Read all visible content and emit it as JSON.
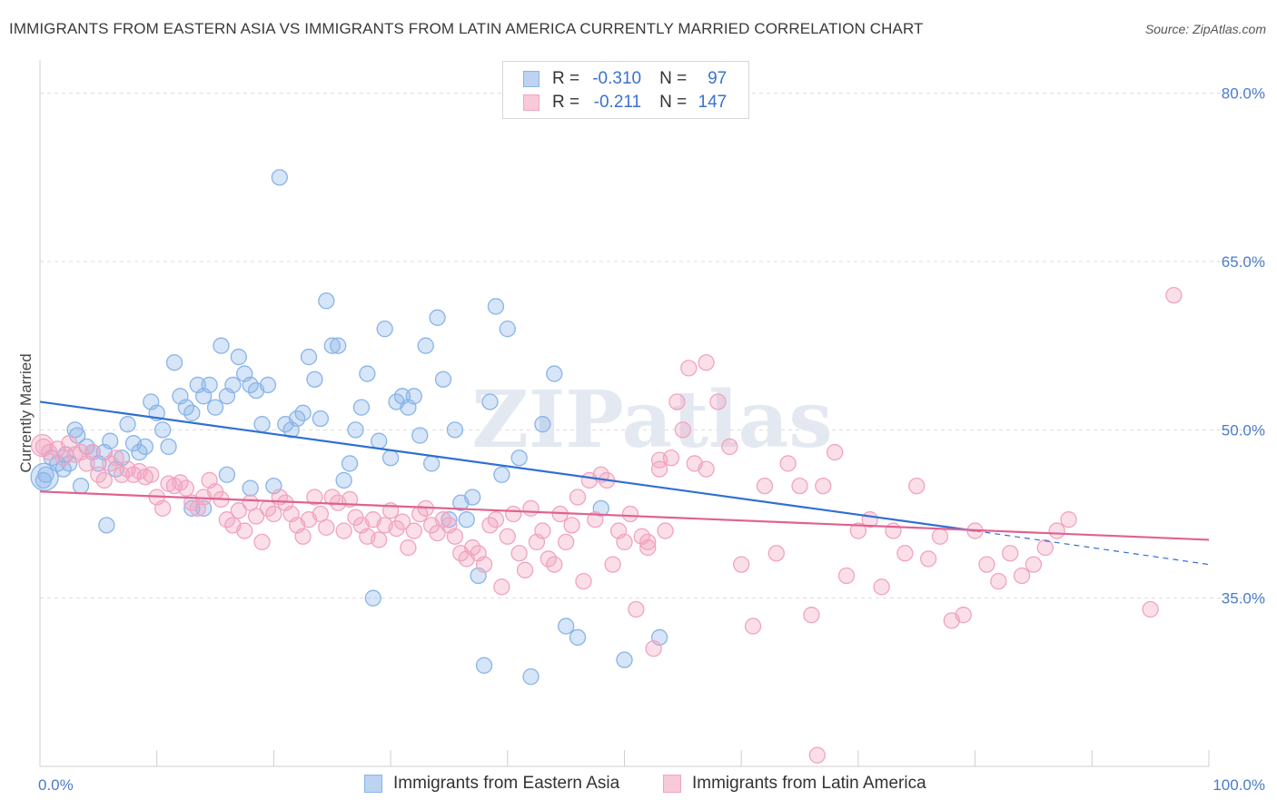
{
  "chart_data": {
    "type": "scatter",
    "title": "IMMIGRANTS FROM EASTERN ASIA VS IMMIGRANTS FROM LATIN AMERICA CURRENTLY MARRIED CORRELATION CHART",
    "source": "Source: ZipAtlas.com",
    "ylabel": "Currently Married",
    "xlabel": "",
    "xlim": [
      0,
      100
    ],
    "ylim": [
      20,
      82
    ],
    "y_ticks": [
      {
        "value": 80,
        "label": "80.0%"
      },
      {
        "value": 65,
        "label": "65.0%"
      },
      {
        "value": 50,
        "label": "50.0%"
      },
      {
        "value": 35,
        "label": "35.0%"
      }
    ],
    "x_tick_labels": {
      "left": "0.0%",
      "right": "100.0%"
    },
    "watermark": "ZIPatlas",
    "legend": {
      "r_label": "R =",
      "n_label": "N =",
      "entries": [
        {
          "r": "-0.310",
          "n": "97"
        },
        {
          "r": "-0.211",
          "n": "147"
        }
      ]
    },
    "series": [
      {
        "name": "Immigrants from Eastern Asia",
        "color": "#89b4e8",
        "line_color": "#2f6fd4",
        "trend": {
          "x0": 0,
          "y0": 52.5,
          "x1": 80,
          "y1": 41.0,
          "dash_to_x": 100,
          "dash_to_y": 38.0
        },
        "points": [
          [
            0.3,
            45.5
          ],
          [
            0.5,
            46
          ],
          [
            1.0,
            47.5
          ],
          [
            1.5,
            47
          ],
          [
            2,
            46.5
          ],
          [
            2.5,
            47
          ],
          [
            3,
            50
          ],
          [
            3.5,
            45
          ],
          [
            4,
            48.5
          ],
          [
            4.5,
            48
          ],
          [
            5,
            47
          ],
          [
            5.5,
            48
          ],
          [
            6,
            49
          ],
          [
            6.5,
            46.5
          ],
          [
            7,
            47.5
          ],
          [
            7.5,
            50.5
          ],
          [
            8,
            48.8
          ],
          [
            8.5,
            48
          ],
          [
            9,
            48.5
          ],
          [
            9.5,
            52.5
          ],
          [
            10,
            51.5
          ],
          [
            10.5,
            50
          ],
          [
            11,
            48.5
          ],
          [
            11.5,
            56
          ],
          [
            12,
            53
          ],
          [
            12.5,
            52
          ],
          [
            13,
            51.5
          ],
          [
            13.5,
            54
          ],
          [
            14,
            53
          ],
          [
            14.5,
            54
          ],
          [
            15,
            52
          ],
          [
            15.5,
            57.5
          ],
          [
            16,
            53
          ],
          [
            16.5,
            54
          ],
          [
            17,
            56.5
          ],
          [
            17.5,
            55
          ],
          [
            18,
            54
          ],
          [
            18.5,
            53.5
          ],
          [
            19,
            50.5
          ],
          [
            19.5,
            54
          ],
          [
            20,
            45
          ],
          [
            20.5,
            72.5
          ],
          [
            21,
            50.5
          ],
          [
            21.5,
            50
          ],
          [
            22,
            51
          ],
          [
            22.5,
            51.5
          ],
          [
            23,
            56.5
          ],
          [
            23.5,
            54.5
          ],
          [
            24,
            51
          ],
          [
            24.5,
            61.5
          ],
          [
            25,
            57.5
          ],
          [
            25.5,
            57.5
          ],
          [
            26,
            45.5
          ],
          [
            26.5,
            47
          ],
          [
            27,
            50
          ],
          [
            27.5,
            52
          ],
          [
            28,
            55
          ],
          [
            28.5,
            35
          ],
          [
            29,
            49
          ],
          [
            29.5,
            59
          ],
          [
            30,
            47.5
          ],
          [
            30.5,
            52.5
          ],
          [
            31,
            53
          ],
          [
            31.5,
            52
          ],
          [
            32,
            53
          ],
          [
            32.5,
            49.5
          ],
          [
            33,
            57.5
          ],
          [
            33.5,
            47
          ],
          [
            34,
            60
          ],
          [
            34.5,
            54.5
          ],
          [
            35,
            42
          ],
          [
            35.5,
            50
          ],
          [
            36,
            43.5
          ],
          [
            36.5,
            42
          ],
          [
            37,
            44
          ],
          [
            37.5,
            37
          ],
          [
            38,
            29
          ],
          [
            38.5,
            52.5
          ],
          [
            39,
            61
          ],
          [
            39.5,
            46
          ],
          [
            40,
            59
          ],
          [
            41,
            47.5
          ],
          [
            42,
            28
          ],
          [
            43,
            50.5
          ],
          [
            44,
            55
          ],
          [
            45,
            32.5
          ],
          [
            46,
            31.5
          ],
          [
            48,
            43
          ],
          [
            50,
            29.5
          ],
          [
            53,
            31.5
          ],
          [
            2.2,
            47.8
          ],
          [
            3.2,
            49.5
          ],
          [
            5.7,
            41.5
          ],
          [
            13,
            43
          ],
          [
            14,
            43
          ],
          [
            16,
            46
          ],
          [
            18,
            44.8
          ]
        ]
      },
      {
        "name": "Immigrants from Latin America",
        "color": "#f2a3bf",
        "line_color": "#e0628e",
        "trend": {
          "x0": 0,
          "y0": 44.5,
          "x1": 100,
          "y1": 40.2
        },
        "points": [
          [
            0.3,
            48.5
          ],
          [
            0.8,
            48
          ],
          [
            1.5,
            48.3
          ],
          [
            2,
            47.5
          ],
          [
            2.5,
            48.8
          ],
          [
            3,
            47.8
          ],
          [
            3.5,
            48
          ],
          [
            4,
            47
          ],
          [
            4.5,
            48
          ],
          [
            5,
            46
          ],
          [
            5.5,
            45.5
          ],
          [
            6,
            47
          ],
          [
            6.5,
            47.5
          ],
          [
            7,
            46
          ],
          [
            7.5,
            46.5
          ],
          [
            8,
            46
          ],
          [
            8.5,
            46.3
          ],
          [
            9,
            45.8
          ],
          [
            9.5,
            46
          ],
          [
            10,
            44
          ],
          [
            10.5,
            43
          ],
          [
            11,
            45.2
          ],
          [
            11.5,
            45
          ],
          [
            12,
            45.3
          ],
          [
            12.5,
            44.8
          ],
          [
            13,
            43.5
          ],
          [
            13.5,
            43
          ],
          [
            14,
            44
          ],
          [
            14.5,
            45.5
          ],
          [
            15,
            44.5
          ],
          [
            15.5,
            43.8
          ],
          [
            16,
            42
          ],
          [
            16.5,
            41.5
          ],
          [
            17,
            42.8
          ],
          [
            17.5,
            41
          ],
          [
            18,
            43.5
          ],
          [
            18.5,
            42.3
          ],
          [
            19,
            40
          ],
          [
            19.5,
            43
          ],
          [
            20,
            42.5
          ],
          [
            20.5,
            44
          ],
          [
            21,
            43.5
          ],
          [
            21.5,
            42.5
          ],
          [
            22,
            41.5
          ],
          [
            22.5,
            40.5
          ],
          [
            23,
            42
          ],
          [
            23.5,
            44
          ],
          [
            24,
            42.5
          ],
          [
            24.5,
            41.3
          ],
          [
            25,
            44
          ],
          [
            25.5,
            43.5
          ],
          [
            26,
            41
          ],
          [
            26.5,
            43.8
          ],
          [
            27,
            42.2
          ],
          [
            27.5,
            41.5
          ],
          [
            28,
            40.5
          ],
          [
            28.5,
            42
          ],
          [
            29,
            40.2
          ],
          [
            29.5,
            41.5
          ],
          [
            30,
            42.8
          ],
          [
            30.5,
            41.2
          ],
          [
            31,
            41.8
          ],
          [
            31.5,
            39.5
          ],
          [
            32,
            41
          ],
          [
            32.5,
            42.5
          ],
          [
            33,
            43
          ],
          [
            33.5,
            41.5
          ],
          [
            34,
            40.8
          ],
          [
            34.5,
            42
          ],
          [
            35,
            41.5
          ],
          [
            35.5,
            40.5
          ],
          [
            36,
            39
          ],
          [
            36.5,
            38.5
          ],
          [
            37,
            39.5
          ],
          [
            37.5,
            39
          ],
          [
            38,
            38
          ],
          [
            38.5,
            41.5
          ],
          [
            39,
            42
          ],
          [
            39.5,
            36
          ],
          [
            40,
            40.5
          ],
          [
            40.5,
            42.5
          ],
          [
            41,
            39
          ],
          [
            41.5,
            37.5
          ],
          [
            42,
            43
          ],
          [
            42.5,
            40
          ],
          [
            43,
            41
          ],
          [
            43.5,
            38.5
          ],
          [
            44,
            38
          ],
          [
            44.5,
            42.5
          ],
          [
            45,
            40
          ],
          [
            45.5,
            41.5
          ],
          [
            46,
            44
          ],
          [
            46.5,
            36.5
          ],
          [
            47,
            45.5
          ],
          [
            47.5,
            42
          ],
          [
            48,
            46
          ],
          [
            48.5,
            45.5
          ],
          [
            49,
            38
          ],
          [
            49.5,
            41
          ],
          [
            50,
            40
          ],
          [
            50.5,
            42.5
          ],
          [
            51,
            34
          ],
          [
            51.5,
            40.5
          ],
          [
            52,
            39.5
          ],
          [
            52.5,
            30.5
          ],
          [
            53,
            46.5
          ],
          [
            53.5,
            41
          ],
          [
            54,
            47.5
          ],
          [
            54.5,
            52.5
          ],
          [
            55,
            50
          ],
          [
            55.5,
            55.5
          ],
          [
            56,
            47
          ],
          [
            57,
            46.5
          ],
          [
            58,
            52.5
          ],
          [
            59,
            48.5
          ],
          [
            60,
            38
          ],
          [
            61,
            32.5
          ],
          [
            62,
            45
          ],
          [
            63,
            39
          ],
          [
            64,
            47
          ],
          [
            65,
            45
          ],
          [
            66,
            33.5
          ],
          [
            67,
            45
          ],
          [
            68,
            48
          ],
          [
            69,
            37
          ],
          [
            70,
            41
          ],
          [
            71,
            42
          ],
          [
            72,
            36
          ],
          [
            73,
            41
          ],
          [
            74,
            39
          ],
          [
            75,
            45
          ],
          [
            76,
            38.5
          ],
          [
            77,
            40.5
          ],
          [
            78,
            33
          ],
          [
            79,
            33.5
          ],
          [
            80,
            41
          ],
          [
            81,
            38
          ],
          [
            82,
            36.5
          ],
          [
            83,
            39
          ],
          [
            84,
            37
          ],
          [
            85,
            38
          ],
          [
            86,
            39.5
          ],
          [
            87,
            41
          ],
          [
            88,
            42
          ],
          [
            97,
            62
          ],
          [
            95,
            34
          ],
          [
            66.5,
            21
          ],
          [
            57,
            56
          ],
          [
            53,
            47.3
          ],
          [
            52,
            40
          ]
        ]
      }
    ],
    "bottom_legend": [
      "Immigrants from Eastern Asia",
      "Immigrants from Latin America"
    ]
  }
}
